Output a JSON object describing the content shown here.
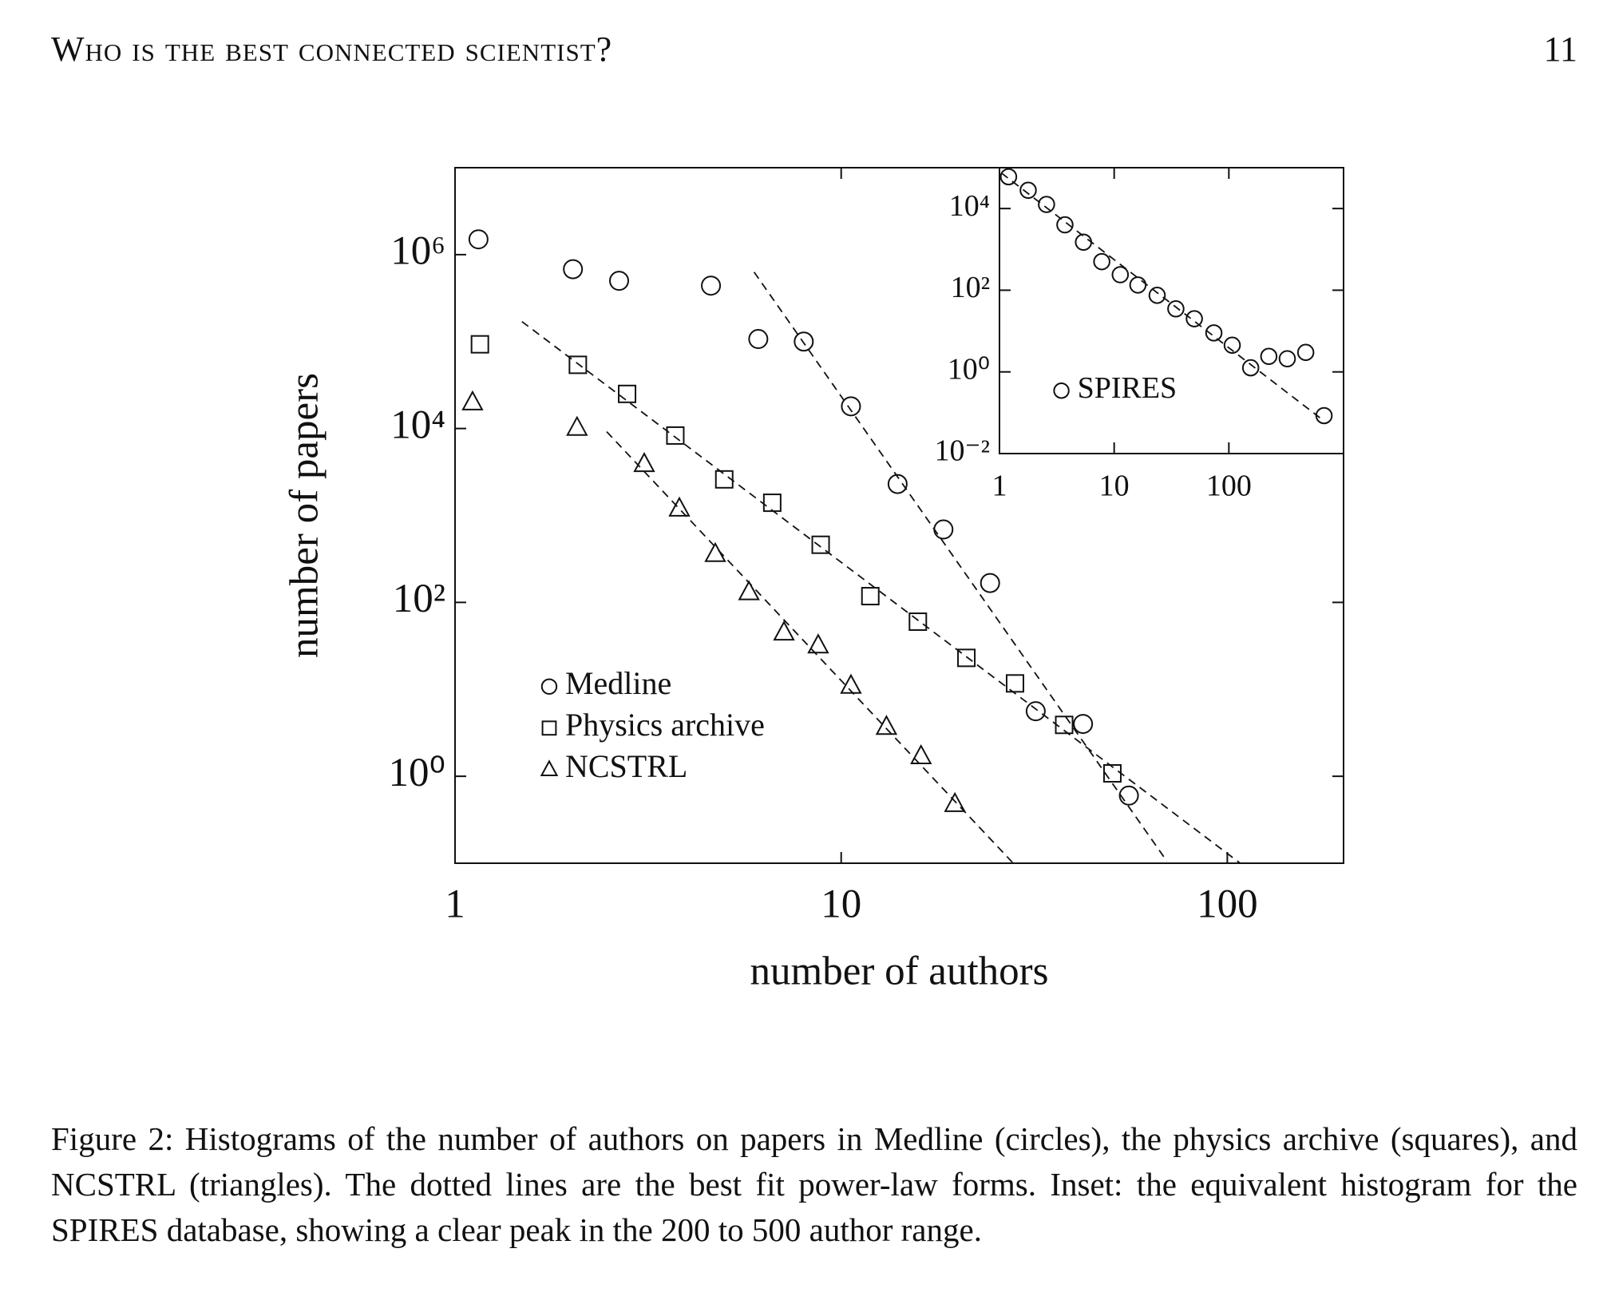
{
  "header": {
    "title": "Who is the best connected scientist?",
    "page": "11"
  },
  "chart_data": [
    {
      "type": "scatter",
      "xlabel": "number of authors",
      "ylabel": "number of papers",
      "xscale": "log",
      "yscale": "log",
      "xlim": [
        1,
        200
      ],
      "ylim": [
        0.1,
        10000000
      ],
      "xticks": [
        1,
        10,
        100
      ],
      "yticks": [
        {
          "value": 1,
          "label": "10⁰"
        },
        {
          "value": 100,
          "label": "10²"
        },
        {
          "value": 10000,
          "label": "10⁴"
        },
        {
          "value": 1000000,
          "label": "10⁶"
        }
      ],
      "legend": "lower left",
      "series": [
        {
          "name": "Medline",
          "marker": "circle",
          "color": "#111111",
          "x": [
            1.15,
            2.02,
            2.66,
            4.6,
            6.1,
            8.0,
            10.6,
            14.0,
            18.4,
            24.3,
            31.9,
            42.3,
            55.6
          ],
          "values": [
            1500000,
            680000,
            500000,
            440000,
            107000,
            100000,
            18000,
            2300,
            690,
            167,
            5.6,
            4.0,
            0.6
          ],
          "fit": {
            "x": [
              5.95,
              69.8
            ],
            "values": [
              630000,
              0.105
            ]
          }
        },
        {
          "name": "Physics archive",
          "marker": "square",
          "color": "#111111",
          "x": [
            1.16,
            2.08,
            2.79,
            3.72,
            4.98,
            6.63,
            8.85,
            11.9,
            15.8,
            21.1,
            28.2,
            37.8,
            50.4
          ],
          "values": [
            93000,
            54000,
            25000,
            8300,
            2600,
            1400,
            460,
            118,
            60,
            23,
            11.7,
            3.9,
            1.08
          ],
          "fit": {
            "x": [
              1.49,
              108
            ],
            "values": [
              170000,
              0.1
            ]
          }
        },
        {
          "name": "NCSTRL",
          "marker": "triangle",
          "color": "#111111",
          "x": [
            1.11,
            2.07,
            3.09,
            3.81,
            4.72,
            5.77,
            7.11,
            8.72,
            10.6,
            13.1,
            16.1,
            19.7
          ],
          "values": [
            20000,
            10200,
            3900,
            1200,
            360,
            131,
            45,
            32,
            11,
            3.7,
            1.7,
            0.48
          ],
          "fit": {
            "x": [
              2.47,
              27.9
            ],
            "values": [
              9200,
              0.1
            ]
          }
        }
      ]
    },
    {
      "type": "scatter",
      "xscale": "log",
      "yscale": "log",
      "xlim": [
        1,
        1000
      ],
      "ylim": [
        0.01,
        100000
      ],
      "xticks": [
        1,
        10,
        100
      ],
      "yticks": [
        {
          "value": 0.01,
          "label": "10⁻²"
        },
        {
          "value": 1,
          "label": "10⁰"
        },
        {
          "value": 100,
          "label": "10²"
        },
        {
          "value": 10000,
          "label": "10⁴"
        }
      ],
      "legend": "center left",
      "series": [
        {
          "name": "SPIRES",
          "marker": "circle",
          "color": "#111111",
          "x": [
            1.2,
            1.78,
            2.57,
            3.72,
            5.4,
            7.8,
            11.3,
            16.1,
            23.7,
            34.5,
            50,
            74,
            107,
            155,
            223,
            323,
            468,
            676
          ],
          "values": [
            60000,
            28000,
            12600,
            4000,
            1500,
            500,
            240,
            134,
            75,
            35,
            20,
            9,
            4.5,
            1.26,
            2.4,
            2.1,
            3,
            0.085
          ],
          "fit": {
            "x": [
              1.04,
              676
            ],
            "values": [
              74000,
              0.063
            ]
          }
        }
      ]
    }
  ],
  "caption": "Figure 2: Histograms of the number of authors on papers in Medline (circles), the physics archive (squares), and NCSTRL (triangles). The dotted lines are the best fit power-law forms. Inset: the equivalent histogram for the SPIRES database, showing a clear peak in the 200 to 500 author range."
}
